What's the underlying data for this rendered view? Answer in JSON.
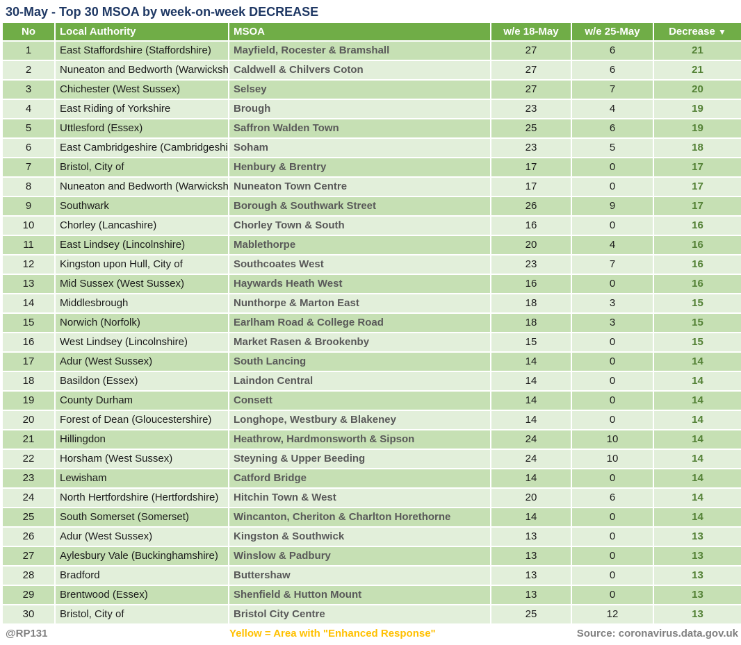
{
  "title": "30-May - Top 30 MSOA by week-on-week DECREASE",
  "colors": {
    "header_green": "#70AD47",
    "row_dark_green": "#C6E0B4",
    "row_light_green": "#E2EFDA",
    "decrease_text_green": "#538135",
    "title_navy": "#1F3864",
    "msoa_text_gray": "#595959",
    "footer_gray": "#808080",
    "legend_yellow": "#FFC000"
  },
  "chart_data": {
    "type": "table",
    "title": "30-May - Top 30 MSOA by week-on-week DECREASE",
    "header": {
      "no": "No",
      "la": "Local Authority",
      "msoa": "MSOA",
      "w18": "w/e 18-May",
      "w25": "w/e 25-May",
      "dec": "Decrease",
      "sort_icon": "▼"
    },
    "sort": {
      "column": "Decrease",
      "direction": "descending"
    },
    "rows": [
      {
        "no": 1,
        "la": "East Staffordshire (Staffordshire)",
        "msoa": "Mayfield, Rocester & Bramshall",
        "w18": 27,
        "w25": 6,
        "dec": 21
      },
      {
        "no": 2,
        "la": "Nuneaton and Bedworth (Warwickshire)",
        "msoa": "Caldwell & Chilvers Coton",
        "w18": 27,
        "w25": 6,
        "dec": 21
      },
      {
        "no": 3,
        "la": "Chichester (West Sussex)",
        "msoa": "Selsey",
        "w18": 27,
        "w25": 7,
        "dec": 20
      },
      {
        "no": 4,
        "la": "East Riding of Yorkshire",
        "msoa": "Brough",
        "w18": 23,
        "w25": 4,
        "dec": 19
      },
      {
        "no": 5,
        "la": "Uttlesford (Essex)",
        "msoa": "Saffron Walden Town",
        "w18": 25,
        "w25": 6,
        "dec": 19
      },
      {
        "no": 6,
        "la": "East Cambridgeshire (Cambridgeshire)",
        "msoa": "Soham",
        "w18": 23,
        "w25": 5,
        "dec": 18
      },
      {
        "no": 7,
        "la": "Bristol, City of",
        "msoa": "Henbury & Brentry",
        "w18": 17,
        "w25": 0,
        "dec": 17
      },
      {
        "no": 8,
        "la": "Nuneaton and Bedworth (Warwickshire)",
        "msoa": "Nuneaton Town Centre",
        "w18": 17,
        "w25": 0,
        "dec": 17
      },
      {
        "no": 9,
        "la": "Southwark",
        "msoa": "Borough & Southwark Street",
        "w18": 26,
        "w25": 9,
        "dec": 17
      },
      {
        "no": 10,
        "la": "Chorley (Lancashire)",
        "msoa": "Chorley Town & South",
        "w18": 16,
        "w25": 0,
        "dec": 16
      },
      {
        "no": 11,
        "la": "East Lindsey (Lincolnshire)",
        "msoa": "Mablethorpe",
        "w18": 20,
        "w25": 4,
        "dec": 16
      },
      {
        "no": 12,
        "la": "Kingston upon Hull, City of",
        "msoa": "Southcoates West",
        "w18": 23,
        "w25": 7,
        "dec": 16
      },
      {
        "no": 13,
        "la": "Mid Sussex (West Sussex)",
        "msoa": "Haywards Heath West",
        "w18": 16,
        "w25": 0,
        "dec": 16
      },
      {
        "no": 14,
        "la": "Middlesbrough",
        "msoa": "Nunthorpe & Marton East",
        "w18": 18,
        "w25": 3,
        "dec": 15
      },
      {
        "no": 15,
        "la": "Norwich (Norfolk)",
        "msoa": "Earlham Road & College Road",
        "w18": 18,
        "w25": 3,
        "dec": 15
      },
      {
        "no": 16,
        "la": "West Lindsey (Lincolnshire)",
        "msoa": "Market Rasen & Brookenby",
        "w18": 15,
        "w25": 0,
        "dec": 15
      },
      {
        "no": 17,
        "la": "Adur (West Sussex)",
        "msoa": "South Lancing",
        "w18": 14,
        "w25": 0,
        "dec": 14
      },
      {
        "no": 18,
        "la": "Basildon (Essex)",
        "msoa": "Laindon Central",
        "w18": 14,
        "w25": 0,
        "dec": 14
      },
      {
        "no": 19,
        "la": "County Durham",
        "msoa": "Consett",
        "w18": 14,
        "w25": 0,
        "dec": 14
      },
      {
        "no": 20,
        "la": "Forest of Dean (Gloucestershire)",
        "msoa": "Longhope, Westbury & Blakeney",
        "w18": 14,
        "w25": 0,
        "dec": 14
      },
      {
        "no": 21,
        "la": "Hillingdon",
        "msoa": "Heathrow, Hardmonsworth & Sipson",
        "w18": 24,
        "w25": 10,
        "dec": 14
      },
      {
        "no": 22,
        "la": "Horsham (West Sussex)",
        "msoa": "Steyning & Upper Beeding",
        "w18": 24,
        "w25": 10,
        "dec": 14
      },
      {
        "no": 23,
        "la": "Lewisham",
        "msoa": "Catford Bridge",
        "w18": 14,
        "w25": 0,
        "dec": 14
      },
      {
        "no": 24,
        "la": "North Hertfordshire (Hertfordshire)",
        "msoa": "Hitchin Town & West",
        "w18": 20,
        "w25": 6,
        "dec": 14
      },
      {
        "no": 25,
        "la": "South Somerset (Somerset)",
        "msoa": "Wincanton, Cheriton & Charlton Horethorne",
        "w18": 14,
        "w25": 0,
        "dec": 14
      },
      {
        "no": 26,
        "la": "Adur (West Sussex)",
        "msoa": "Kingston & Southwick",
        "w18": 13,
        "w25": 0,
        "dec": 13
      },
      {
        "no": 27,
        "la": "Aylesbury Vale (Buckinghamshire)",
        "msoa": "Winslow & Padbury",
        "w18": 13,
        "w25": 0,
        "dec": 13
      },
      {
        "no": 28,
        "la": "Bradford",
        "msoa": "Buttershaw",
        "w18": 13,
        "w25": 0,
        "dec": 13
      },
      {
        "no": 29,
        "la": "Brentwood (Essex)",
        "msoa": "Shenfield & Hutton Mount",
        "w18": 13,
        "w25": 0,
        "dec": 13
      },
      {
        "no": 30,
        "la": "Bristol, City of",
        "msoa": "Bristol City Centre",
        "w18": 25,
        "w25": 12,
        "dec": 13
      }
    ]
  },
  "footer": {
    "credit": "@RP131",
    "legend_note": "Yellow = Area with \"Enhanced Response\"",
    "source": "Source: coronavirus.data.gov.uk"
  }
}
